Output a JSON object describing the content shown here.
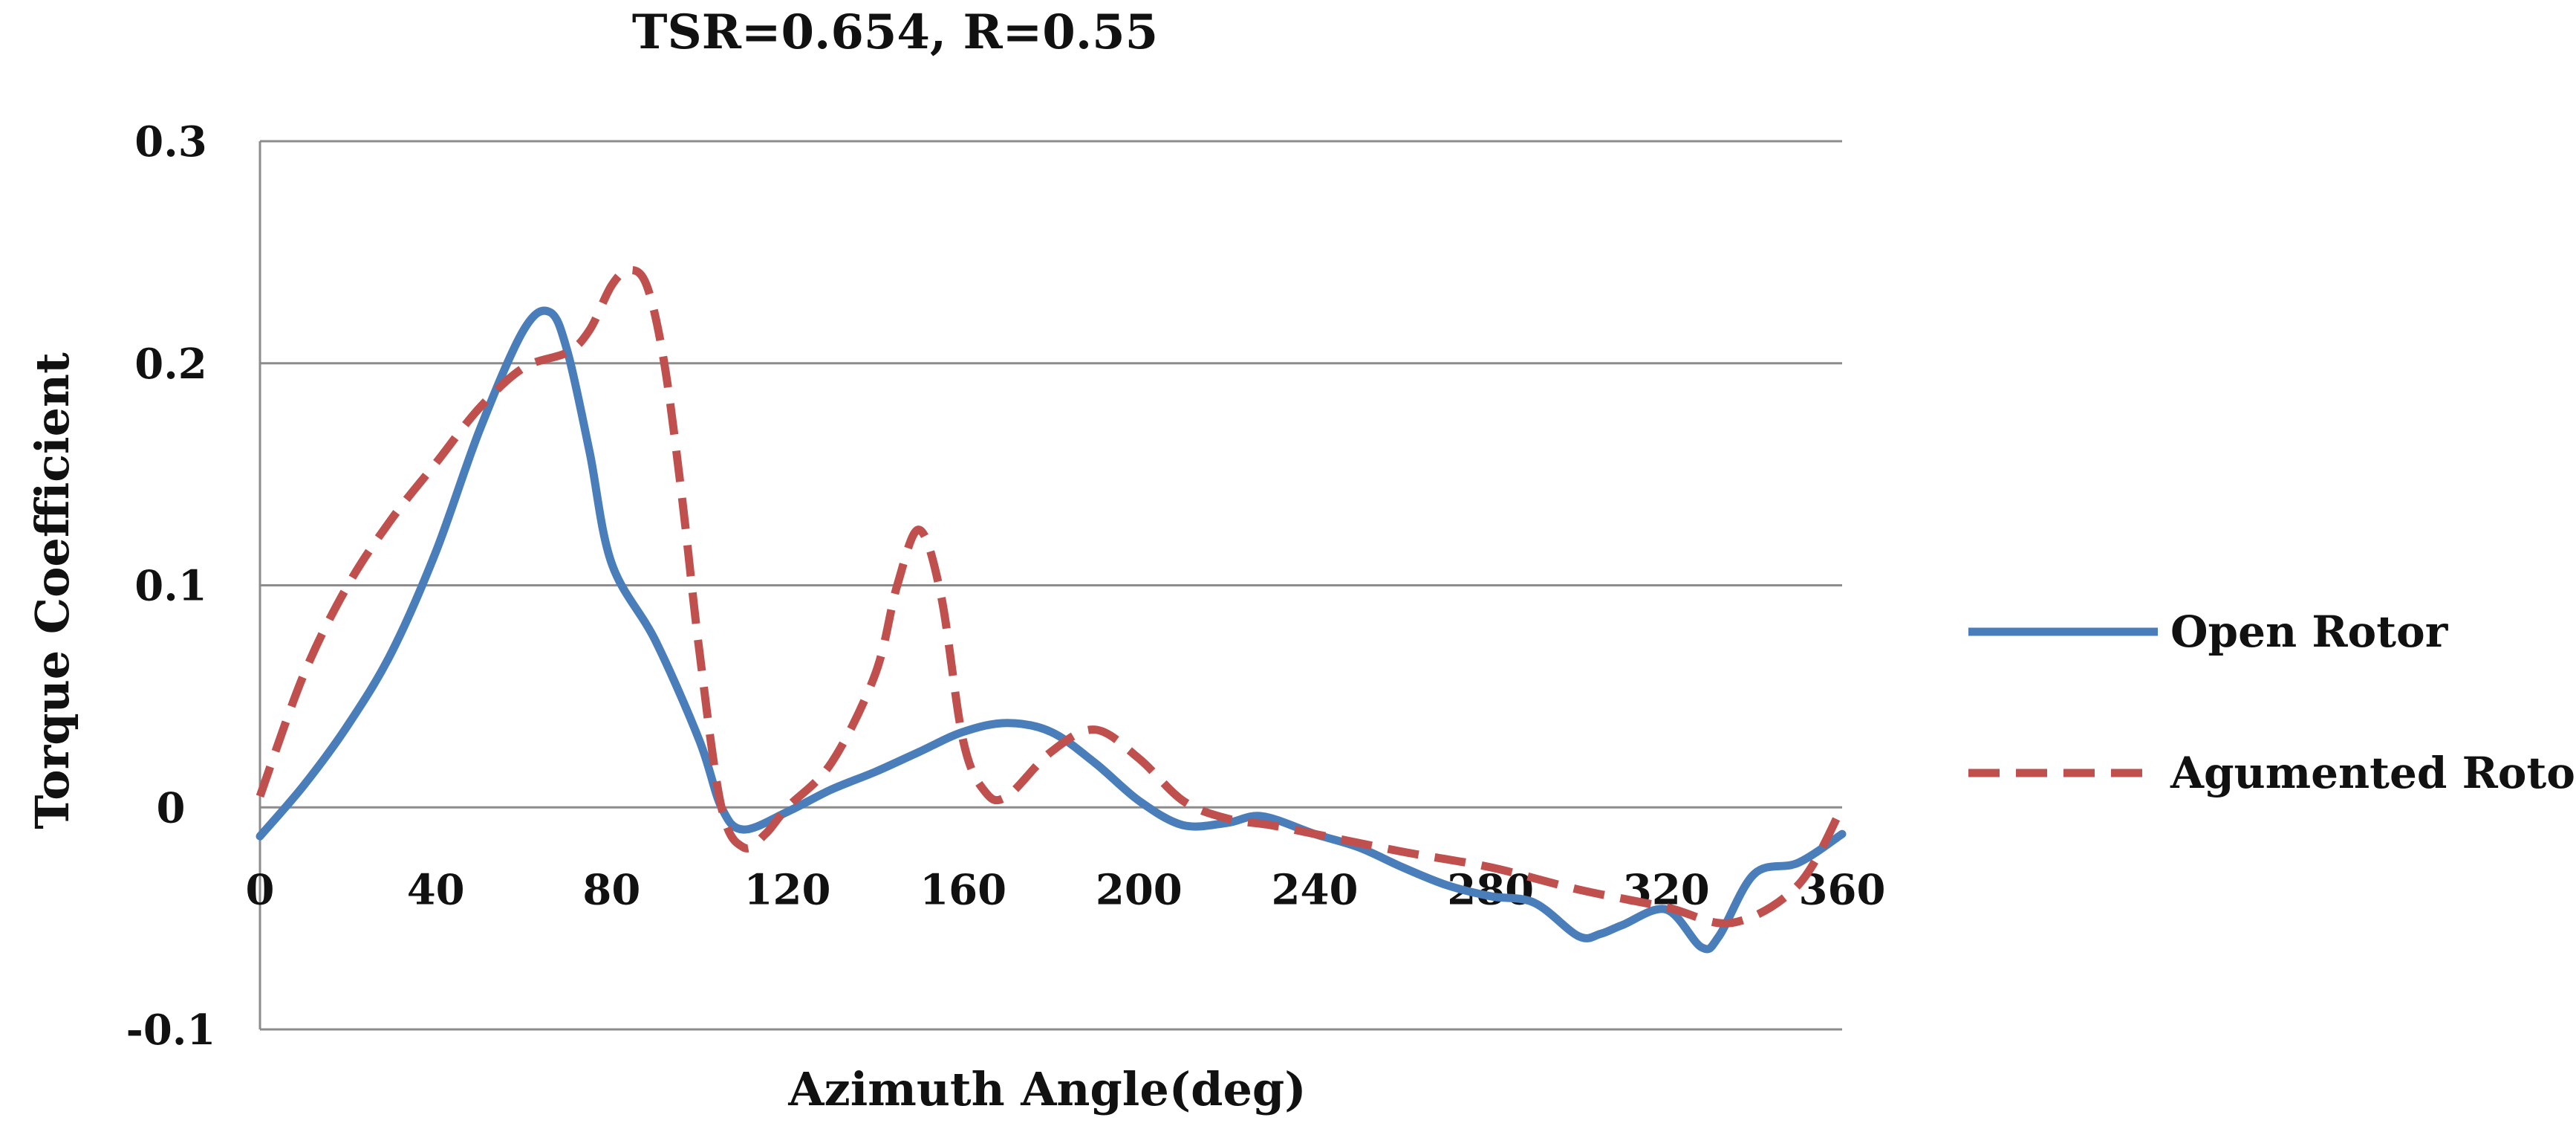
{
  "chart_data": {
    "type": "line",
    "title": "TSR=0.654, R=0.55",
    "xlabel": "Azimuth Angle(deg)",
    "ylabel": "Torque Coefficient",
    "xlim": [
      0,
      360
    ],
    "ylim": [
      -0.1,
      0.3
    ],
    "xticks": [
      0,
      40,
      80,
      120,
      160,
      200,
      240,
      280,
      320,
      360
    ],
    "yticks": [
      -0.1,
      0,
      0.1,
      0.2,
      0.3
    ],
    "ytick_labels": [
      "-0.1",
      "0",
      "0.1",
      "0.2",
      "0.3"
    ],
    "xtick_labels": [
      "0",
      "40",
      "80",
      "120",
      "160",
      "200",
      "240",
      "280",
      "320",
      "360"
    ],
    "grid": "horizontal",
    "legend_position": "right",
    "series": [
      {
        "name": "Open Rotor",
        "color": "#4a7ebb",
        "style": "solid",
        "x": [
          0,
          10,
          20,
          30,
          40,
          50,
          60,
          66,
          70,
          75,
          80,
          90,
          100,
          105,
          110,
          120,
          130,
          140,
          150,
          160,
          170,
          180,
          190,
          200,
          210,
          220,
          228,
          240,
          250,
          260,
          270,
          280,
          290,
          300,
          305,
          310,
          320,
          328,
          332,
          340,
          350,
          360
        ],
        "y": [
          -0.013,
          0.01,
          0.037,
          0.07,
          0.115,
          0.17,
          0.215,
          0.223,
          0.205,
          0.16,
          0.11,
          0.075,
          0.03,
          0.0,
          -0.01,
          -0.002,
          0.008,
          0.016,
          0.025,
          0.034,
          0.038,
          0.034,
          0.02,
          0.003,
          -0.008,
          -0.007,
          -0.004,
          -0.012,
          -0.018,
          -0.027,
          -0.035,
          -0.04,
          -0.043,
          -0.058,
          -0.057,
          -0.053,
          -0.046,
          -0.063,
          -0.058,
          -0.03,
          -0.025,
          -0.012
        ]
      },
      {
        "name": "Agumented Rotor",
        "color": "#c0504d",
        "style": "dashed",
        "x": [
          0,
          10,
          20,
          30,
          40,
          50,
          60,
          70,
          75,
          80,
          84,
          88,
          92,
          96,
          100,
          105,
          110,
          115,
          120,
          130,
          140,
          145,
          150,
          155,
          160,
          165,
          170,
          180,
          190,
          200,
          210,
          220,
          230,
          240,
          260,
          280,
          300,
          320,
          335,
          350,
          360
        ],
        "y": [
          0.005,
          0.06,
          0.1,
          0.13,
          0.155,
          0.18,
          0.198,
          0.205,
          0.215,
          0.235,
          0.242,
          0.235,
          0.2,
          0.14,
          0.07,
          0.0,
          -0.018,
          -0.012,
          0.0,
          0.02,
          0.06,
          0.1,
          0.125,
          0.095,
          0.03,
          0.007,
          0.005,
          0.025,
          0.035,
          0.022,
          0.003,
          -0.005,
          -0.008,
          -0.012,
          -0.02,
          -0.027,
          -0.037,
          -0.045,
          -0.052,
          -0.035,
          0.0
        ]
      }
    ]
  }
}
